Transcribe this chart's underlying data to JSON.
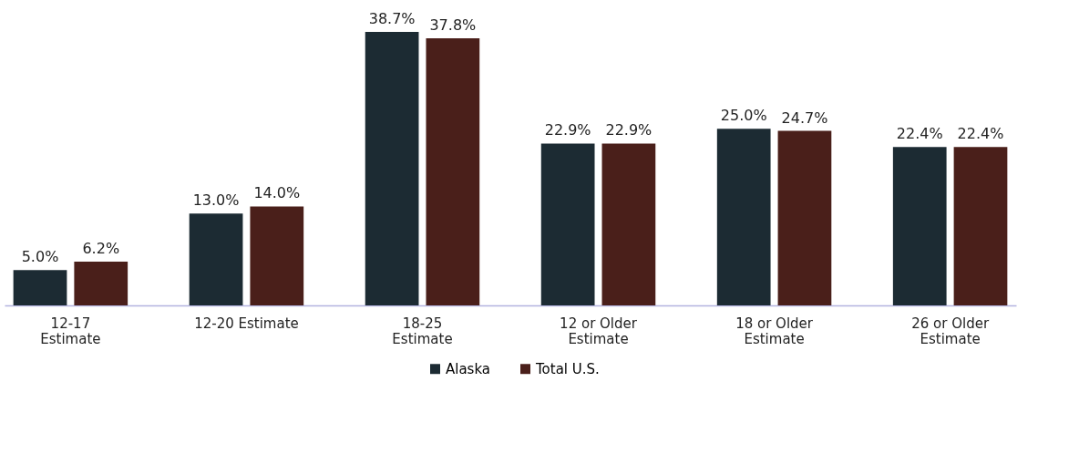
{
  "chart_data": {
    "type": "bar",
    "categories": [
      "12-17\nEstimate",
      "12-20 Estimate",
      "18-25\nEstimate",
      "12 or Older\nEstimate",
      "18 or Older\nEstimate",
      "26 or Older\nEstimate"
    ],
    "series": [
      {
        "name": "Alaska",
        "color": "#1c2b33",
        "values": [
          5.0,
          13.0,
          38.7,
          22.9,
          25.0,
          22.4
        ],
        "value_labels": [
          "5.0%",
          "13.0%",
          "38.7%",
          "22.9%",
          "25.0%",
          "22.4%"
        ]
      },
      {
        "name": "Total U.S.",
        "color": "#4a1f1a",
        "values": [
          6.2,
          14.0,
          37.8,
          22.9,
          24.7,
          22.4
        ],
        "value_labels": [
          "6.2%",
          "14.0%",
          "37.8%",
          "22.9%",
          "24.7%",
          "22.4%"
        ]
      }
    ],
    "legend": "bottom",
    "grid": false
  }
}
